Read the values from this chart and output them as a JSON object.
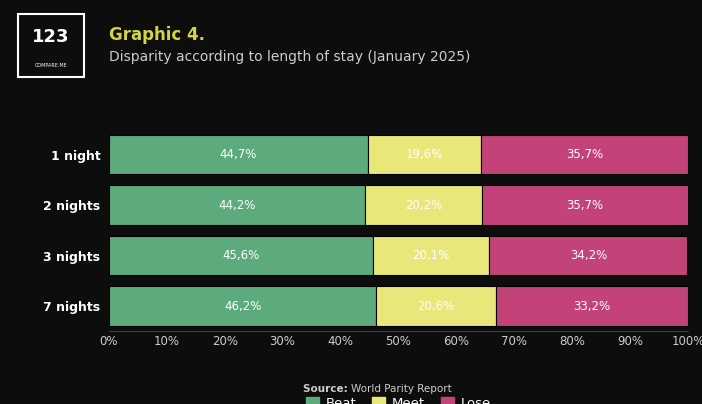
{
  "title_line1": "Graphic 4.",
  "title_line2": "Disparity according to length of stay (January 2025)",
  "categories": [
    "1 night",
    "2 nights",
    "3 nights",
    "7 nights"
  ],
  "beat": [
    44.7,
    44.2,
    45.6,
    46.2
  ],
  "meet": [
    19.6,
    20.2,
    20.1,
    20.6
  ],
  "lose": [
    35.7,
    35.7,
    34.2,
    33.2
  ],
  "beat_label": [
    "44,7%",
    "44,2%",
    "45,6%",
    "46,2%"
  ],
  "meet_label": [
    "19,6%",
    "20,2%",
    "20,1%",
    "20,6%"
  ],
  "lose_label": [
    "35,7%",
    "35,7%",
    "34,2%",
    "33,2%"
  ],
  "color_beat": "#5dab7c",
  "color_meet": "#e8e87a",
  "color_lose": "#c4427a",
  "background_color": "#0d0d0d",
  "text_color": "#ffffff",
  "text_color_dark": "#cccccc",
  "title_color": "#d4d440",
  "source_bold_color": "#cccccc",
  "source_text": "World Parity Report",
  "source_label": "Source:",
  "legend_labels": [
    "Beat",
    "Meet",
    "Lose"
  ],
  "xtick_labels": [
    "0%",
    "10%",
    "20%",
    "30%",
    "40%",
    "50%",
    "60%",
    "70%",
    "80%",
    "90%",
    "100%"
  ],
  "title_fontsize": 12,
  "subtitle_fontsize": 10,
  "bar_label_fontsize": 8.5,
  "ytick_fontsize": 9,
  "xtick_fontsize": 8.5,
  "legend_fontsize": 9.5,
  "source_fontsize": 7.5,
  "bar_height": 0.78
}
